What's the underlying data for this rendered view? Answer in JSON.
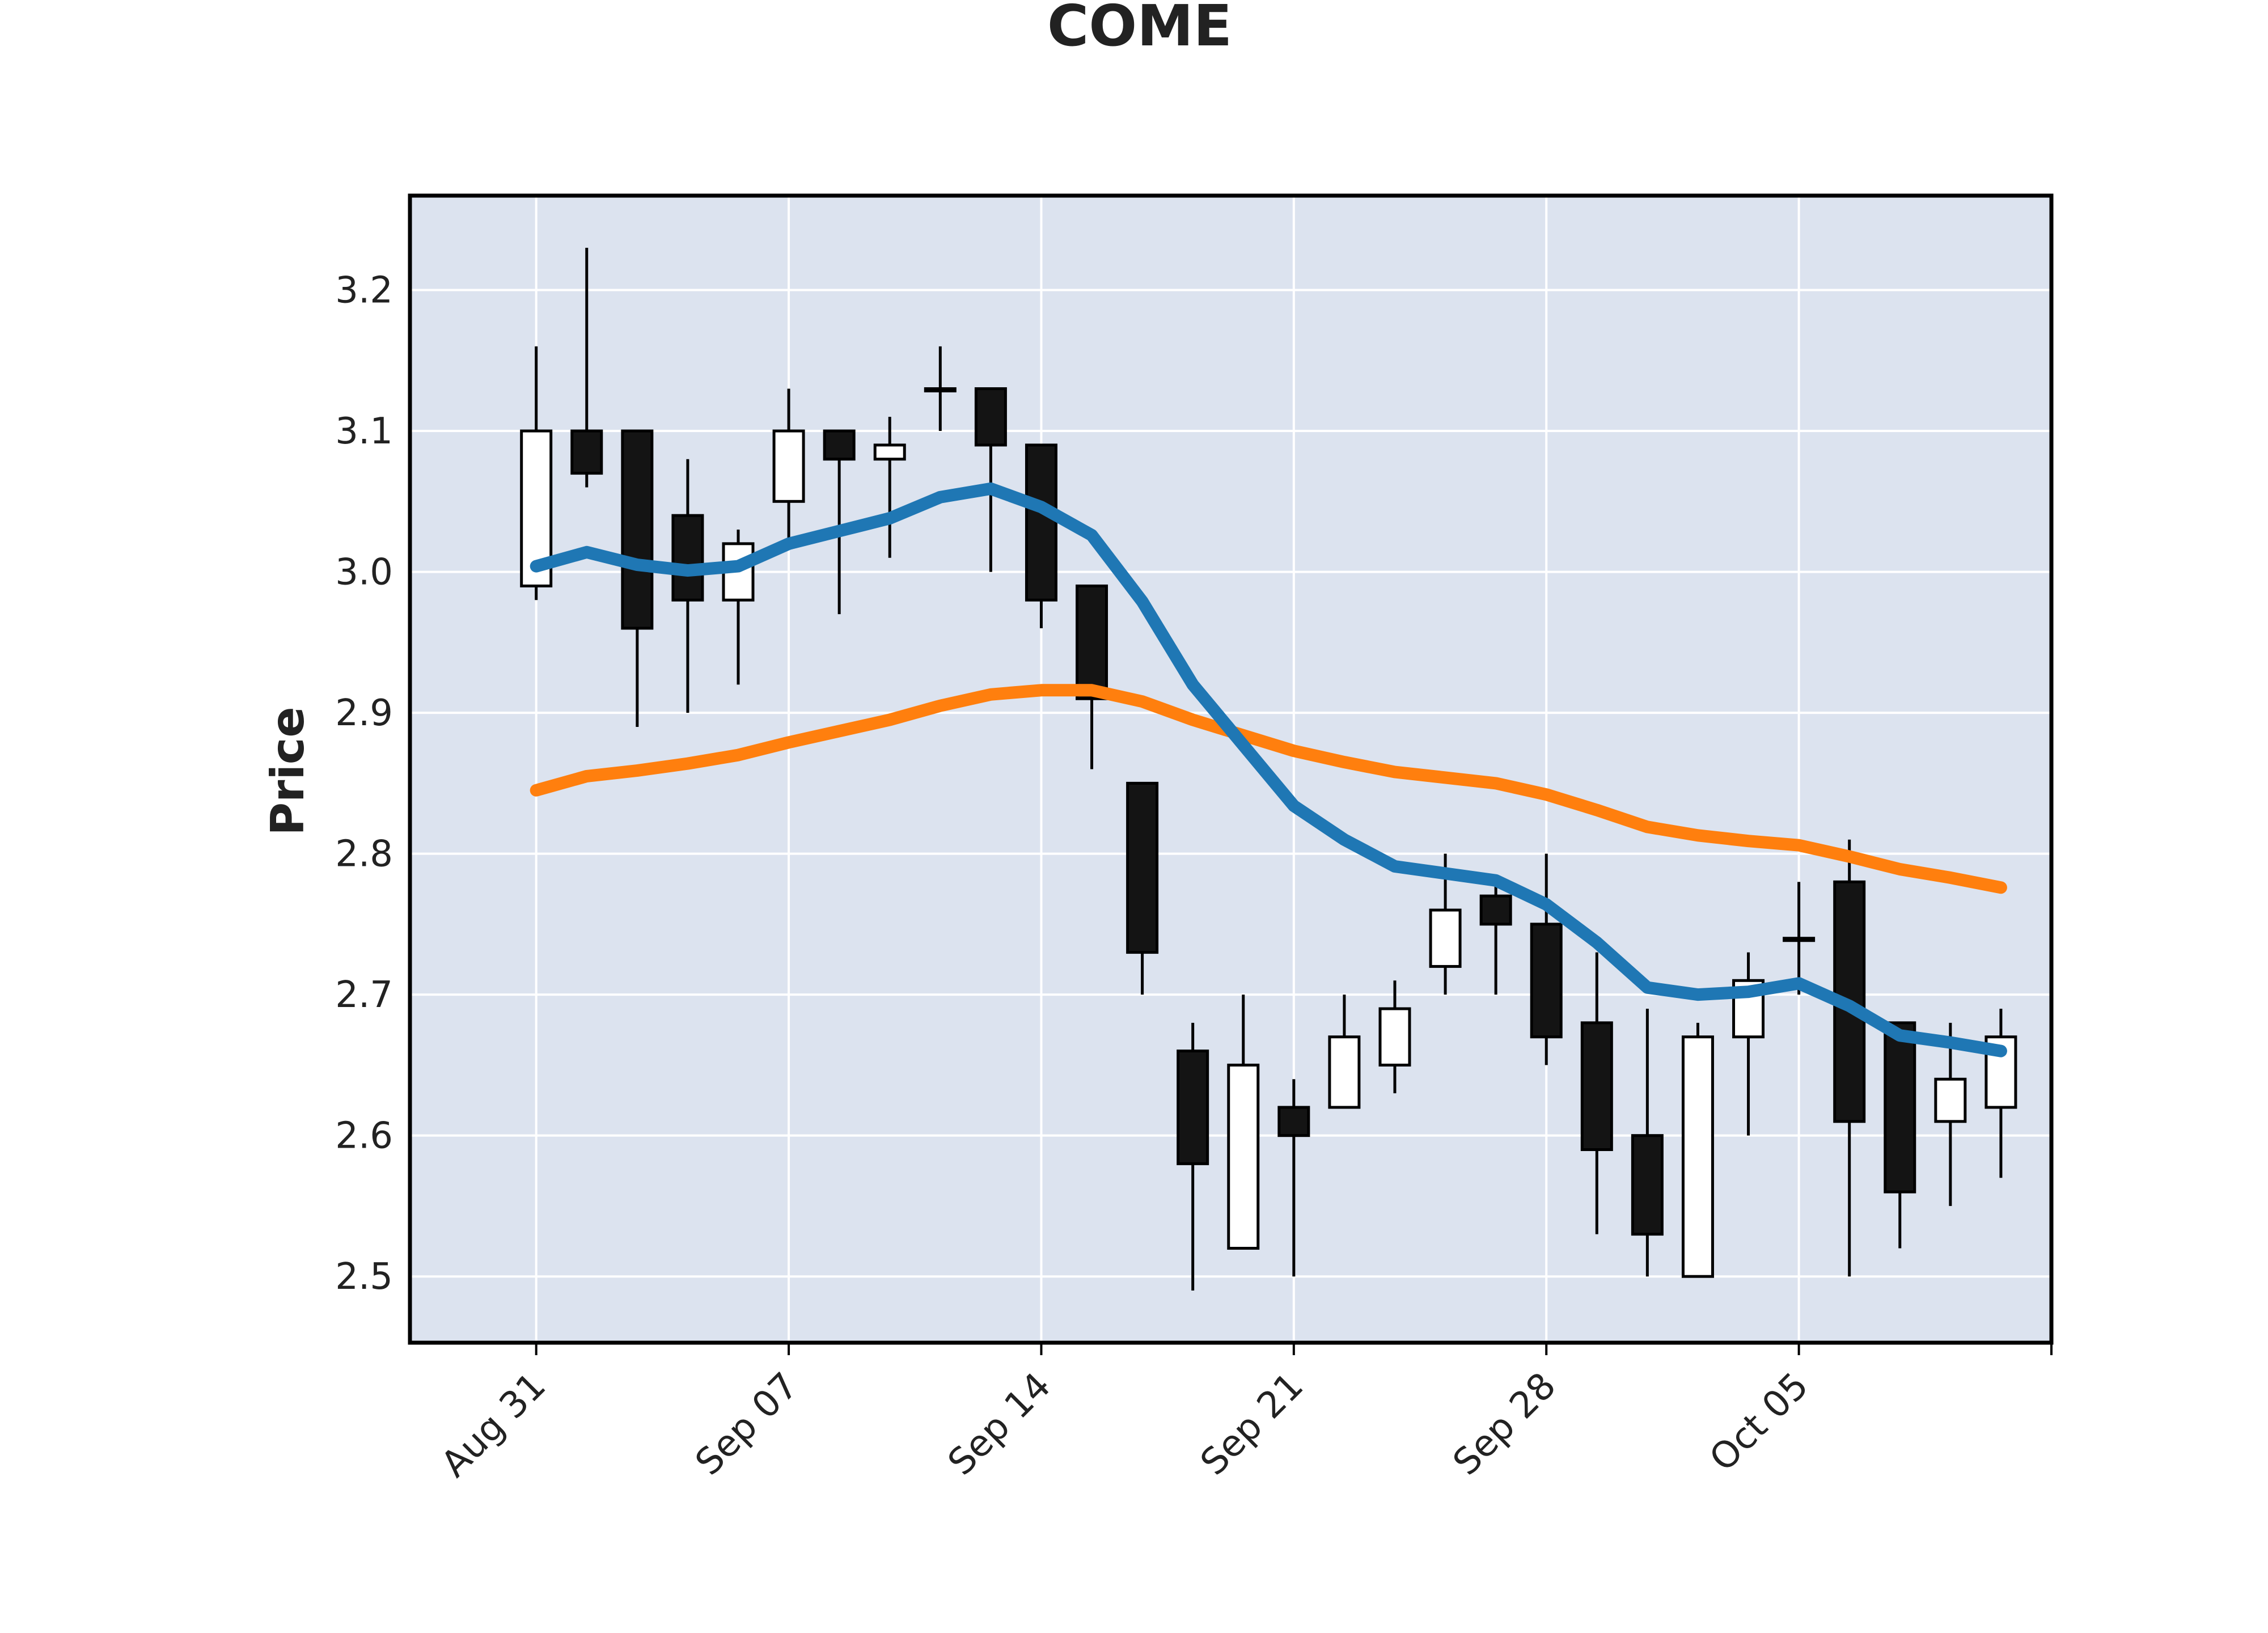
{
  "chart_data": {
    "type": "candlestick",
    "title": "COME",
    "ylabel": "Price",
    "xlabel": "",
    "ylim": [
      2.453,
      3.267
    ],
    "grid": true,
    "legend": "none",
    "colors": {
      "background": "#dce3ef",
      "grid": "#ffffff",
      "frame": "#000000",
      "up_body": "#ffffff",
      "down_body": "#141414",
      "wick": "#000000",
      "ma_short": "#1f77b4",
      "ma_long": "#ff7f0e"
    },
    "yticks": [
      "2.5",
      "2.6",
      "2.7",
      "2.8",
      "2.9",
      "3.0",
      "3.1",
      "3.2"
    ],
    "xticks": [
      {
        "label": "Aug 31",
        "index": 0
      },
      {
        "label": "Sep 07",
        "index": 5
      },
      {
        "label": "Sep 14",
        "index": 10
      },
      {
        "label": "Sep 21",
        "index": 15
      },
      {
        "label": "Sep 28",
        "index": 20
      },
      {
        "label": "Oct 05",
        "index": 25
      }
    ],
    "xrange": [
      -2.5,
      30
    ],
    "candles": [
      {
        "date": "2020-08-31",
        "open": 2.99,
        "high": 3.16,
        "low": 2.98,
        "close": 3.1
      },
      {
        "date": "2020-09-01",
        "open": 3.1,
        "high": 3.23,
        "low": 3.06,
        "close": 3.07
      },
      {
        "date": "2020-09-02",
        "open": 3.1,
        "high": 3.1,
        "low": 2.89,
        "close": 2.96
      },
      {
        "date": "2020-09-03",
        "open": 3.04,
        "high": 3.08,
        "low": 2.9,
        "close": 2.98
      },
      {
        "date": "2020-09-04",
        "open": 2.98,
        "high": 3.03,
        "low": 2.92,
        "close": 3.02
      },
      {
        "date": "2020-09-07",
        "open": 3.05,
        "high": 3.13,
        "low": 3.02,
        "close": 3.1
      },
      {
        "date": "2020-09-08",
        "open": 3.1,
        "high": 3.1,
        "low": 2.97,
        "close": 3.08
      },
      {
        "date": "2020-09-09",
        "open": 3.08,
        "high": 3.11,
        "low": 3.01,
        "close": 3.09
      },
      {
        "date": "2020-09-10",
        "open": 3.13,
        "high": 3.16,
        "low": 3.1,
        "close": 3.13
      },
      {
        "date": "2020-09-11",
        "open": 3.13,
        "high": 3.13,
        "low": 3.0,
        "close": 3.09
      },
      {
        "date": "2020-09-14",
        "open": 3.09,
        "high": 3.09,
        "low": 2.96,
        "close": 2.98
      },
      {
        "date": "2020-09-15",
        "open": 2.99,
        "high": 2.99,
        "low": 2.86,
        "close": 2.91
      },
      {
        "date": "2020-09-16",
        "open": 2.85,
        "high": 2.85,
        "low": 2.7,
        "close": 2.73
      },
      {
        "date": "2020-09-17",
        "open": 2.66,
        "high": 2.68,
        "low": 2.49,
        "close": 2.58
      },
      {
        "date": "2020-09-18",
        "open": 2.52,
        "high": 2.7,
        "low": 2.52,
        "close": 2.65
      },
      {
        "date": "2020-09-21",
        "open": 2.62,
        "high": 2.64,
        "low": 2.5,
        "close": 2.6
      },
      {
        "date": "2020-09-22",
        "open": 2.62,
        "high": 2.7,
        "low": 2.62,
        "close": 2.67
      },
      {
        "date": "2020-09-23",
        "open": 2.65,
        "high": 2.71,
        "low": 2.63,
        "close": 2.69
      },
      {
        "date": "2020-09-24",
        "open": 2.72,
        "high": 2.8,
        "low": 2.7,
        "close": 2.76
      },
      {
        "date": "2020-09-25",
        "open": 2.77,
        "high": 2.78,
        "low": 2.7,
        "close": 2.75
      },
      {
        "date": "2020-09-28",
        "open": 2.75,
        "high": 2.8,
        "low": 2.65,
        "close": 2.67
      },
      {
        "date": "2020-09-29",
        "open": 2.68,
        "high": 2.73,
        "low": 2.53,
        "close": 2.59
      },
      {
        "date": "2020-09-30",
        "open": 2.6,
        "high": 2.69,
        "low": 2.5,
        "close": 2.53
      },
      {
        "date": "2020-10-01",
        "open": 2.5,
        "high": 2.68,
        "low": 2.5,
        "close": 2.67
      },
      {
        "date": "2020-10-02",
        "open": 2.67,
        "high": 2.73,
        "low": 2.6,
        "close": 2.71
      },
      {
        "date": "2020-10-05",
        "open": 2.74,
        "high": 2.78,
        "low": 2.7,
        "close": 2.74
      },
      {
        "date": "2020-10-06",
        "open": 2.78,
        "high": 2.81,
        "low": 2.5,
        "close": 2.61
      },
      {
        "date": "2020-10-07",
        "open": 2.68,
        "high": 2.68,
        "low": 2.52,
        "close": 2.56
      },
      {
        "date": "2020-10-08",
        "open": 2.61,
        "high": 2.68,
        "low": 2.55,
        "close": 2.64
      },
      {
        "date": "2020-10-09",
        "open": 2.62,
        "high": 2.69,
        "low": 2.57,
        "close": 2.67
      }
    ],
    "ma_short": [
      3.004,
      3.014,
      3.005,
      3.001,
      3.004,
      3.02,
      3.029,
      3.038,
      3.053,
      3.059,
      3.046,
      3.026,
      2.979,
      2.92,
      2.877,
      2.834,
      2.81,
      2.791,
      2.786,
      2.781,
      2.764,
      2.737,
      2.705,
      2.7,
      2.702,
      2.708,
      2.692,
      2.671,
      2.666,
      2.66
    ],
    "ma_long": [
      2.845,
      2.855,
      2.859,
      2.864,
      2.87,
      2.879,
      2.887,
      2.895,
      2.905,
      2.913,
      2.916,
      2.916,
      2.908,
      2.895,
      2.884,
      2.873,
      2.865,
      2.858,
      2.854,
      2.85,
      2.842,
      2.831,
      2.819,
      2.813,
      2.809,
      2.806,
      2.798,
      2.789,
      2.783,
      2.776
    ]
  }
}
